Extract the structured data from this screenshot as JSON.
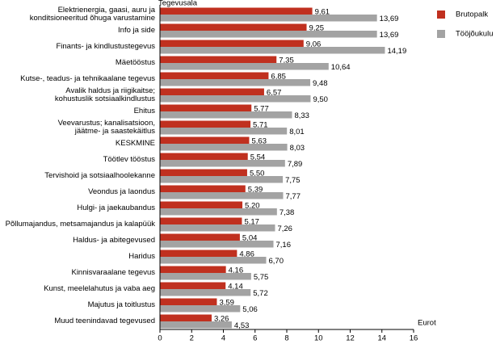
{
  "chart_data": {
    "type": "hbar",
    "y_label": "Tegevusala",
    "x_label": "Eurot",
    "categories": [
      "Elektrienergia, gaasi, auru ja\nkonditsioneeritud õhuga varustamine",
      "Info ja side",
      "Finants- ja kindlustustegevus",
      "Mäetööstus",
      "Kutse-, teadus- ja tehnikaalane tegevus",
      "Avalik haldus ja riigikaitse;\nkohustuslik sotsiaalkindlustus",
      "Ehitus",
      "Veevarustus; kanalisatsioon,\njäätme- ja saastekäitlus",
      "KESKMINE",
      "Töötlev tööstus",
      "Tervishoid ja sotsiaalhoolekanne",
      "Veondus ja laondus",
      "Hulgi- ja jaekaubandus",
      "Põllumajandus, metsamajandus ja kalapüük",
      "Haldus- ja abitegevused",
      "Haridus",
      "Kinnisvaraalane tegevus",
      "Kunst, meelelahutus ja vaba aeg",
      "Majutus ja toitlustus",
      "Muud teenindavad tegevused"
    ],
    "series": [
      {
        "name": "Brutopalk",
        "color": "#c0301f",
        "values": [
          9.61,
          9.25,
          9.06,
          7.35,
          6.85,
          6.57,
          5.77,
          5.71,
          5.63,
          5.54,
          5.5,
          5.39,
          5.2,
          5.17,
          5.04,
          4.86,
          4.16,
          4.14,
          3.59,
          3.26
        ],
        "value_labels": [
          "9,61",
          "9,25",
          "9,06",
          "7,35",
          "6,85",
          "6,57",
          "5,77",
          "5,71",
          "5,63",
          "5,54",
          "5,50",
          "5,39",
          "5,20",
          "5,17",
          "5,04",
          "4,86",
          "4,16",
          "4,14",
          "3,59",
          "3,26"
        ]
      },
      {
        "name": "Tööjõukulu",
        "color": "#a3a3a3",
        "values": [
          13.69,
          13.69,
          14.19,
          10.64,
          9.48,
          9.5,
          8.33,
          8.01,
          8.03,
          7.89,
          7.75,
          7.77,
          7.38,
          7.26,
          7.16,
          6.7,
          5.75,
          5.72,
          5.06,
          4.53
        ],
        "value_labels": [
          "13,69",
          "13,69",
          "14,19",
          "10,64",
          "9,48",
          "9,50",
          "8,33",
          "8,01",
          "8,03",
          "7,89",
          "7,75",
          "7,77",
          "7,38",
          "7,26",
          "7,16",
          "6,70",
          "5,75",
          "5,72",
          "5,06",
          "4,53"
        ]
      }
    ],
    "xlim": [
      0,
      16
    ],
    "xticks": [
      0,
      2,
      4,
      6,
      8,
      10,
      12,
      14,
      16
    ],
    "legend": "top-right"
  }
}
